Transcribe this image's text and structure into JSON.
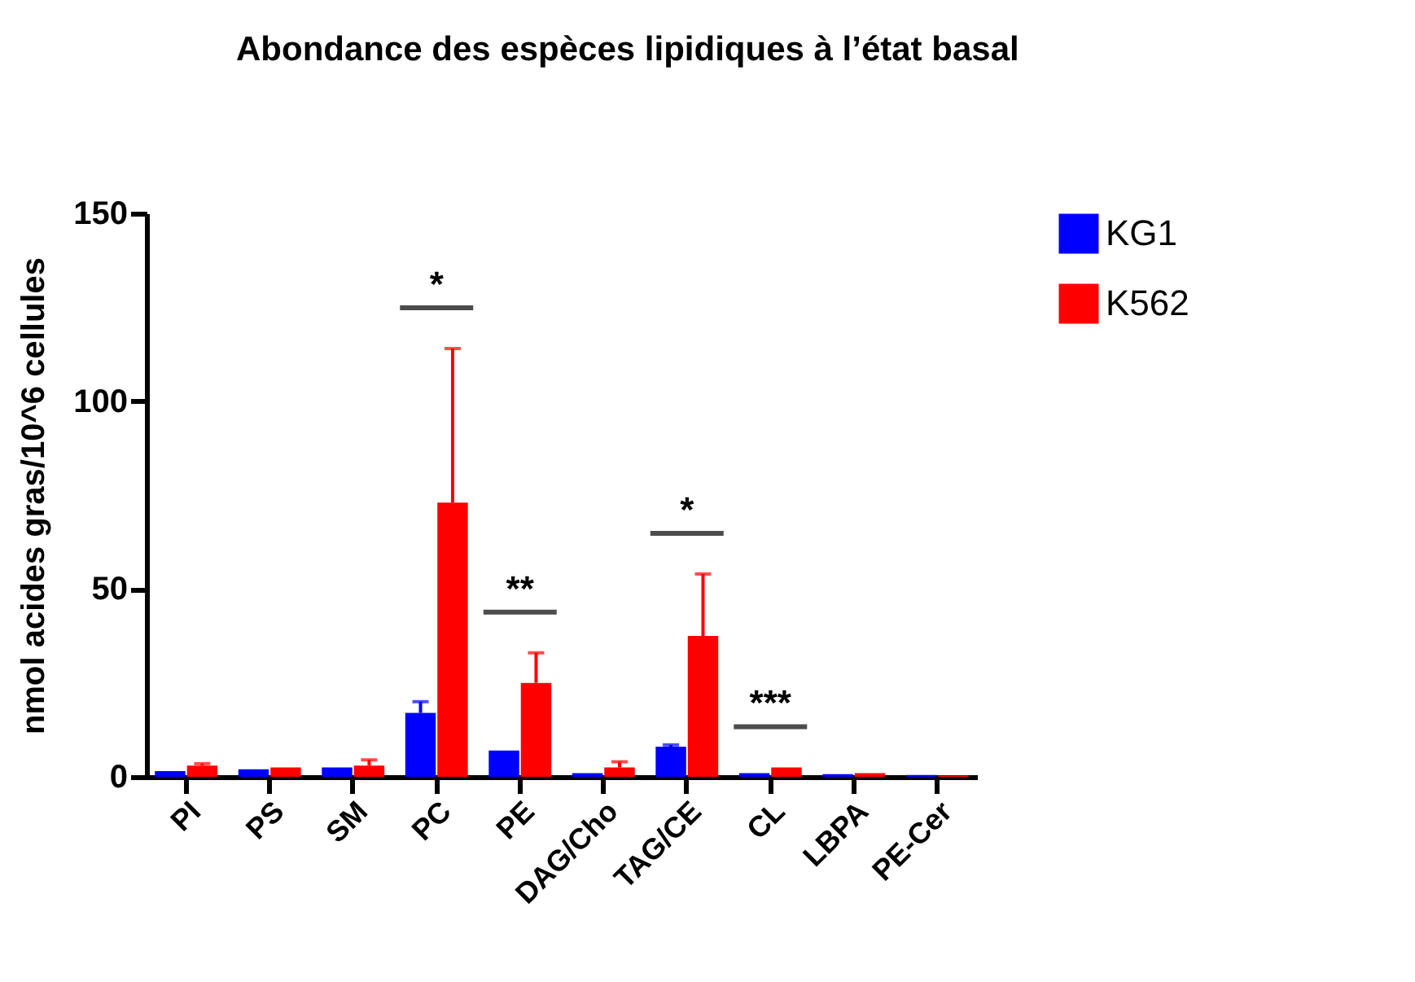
{
  "chart_data": {
    "type": "bar",
    "title": "Abondance des espèces lipidiques à l’état basal",
    "ylabel": "nmol acides gras/10^6 cellules",
    "categories": [
      "PI",
      "PS",
      "SM",
      "PC",
      "PE",
      "DAG/Cho",
      "TAG/CE",
      "CL",
      "LBPA",
      "PE-Cer"
    ],
    "series": [
      {
        "name": "KG1",
        "color": "#0000ff",
        "values": [
          1.5,
          2,
          2.5,
          17,
          7,
          1,
          8,
          1,
          0.7,
          0.5
        ],
        "errors": [
          null,
          null,
          null,
          3,
          null,
          null,
          0.5,
          null,
          null,
          null
        ]
      },
      {
        "name": "K562",
        "color": "#ff0000",
        "values": [
          3,
          2.5,
          3,
          73,
          25,
          2.5,
          37.5,
          2.5,
          1,
          0.3
        ],
        "errors": [
          0.5,
          null,
          1.5,
          41,
          8,
          1.5,
          16.5,
          null,
          null,
          null
        ]
      }
    ],
    "ylim": [
      0,
      150
    ],
    "yticks": [
      0,
      50,
      100,
      150
    ],
    "grid": false,
    "legend": "top right",
    "annotations": [
      {
        "text": "*",
        "x": "PC",
        "y": 114
      },
      {
        "text": "**",
        "x": "PE",
        "y": 33
      },
      {
        "text": "*",
        "x": "TAG/CE",
        "y": 54
      },
      {
        "text": "***",
        "x": "CL",
        "y": 2.5
      }
    ]
  }
}
